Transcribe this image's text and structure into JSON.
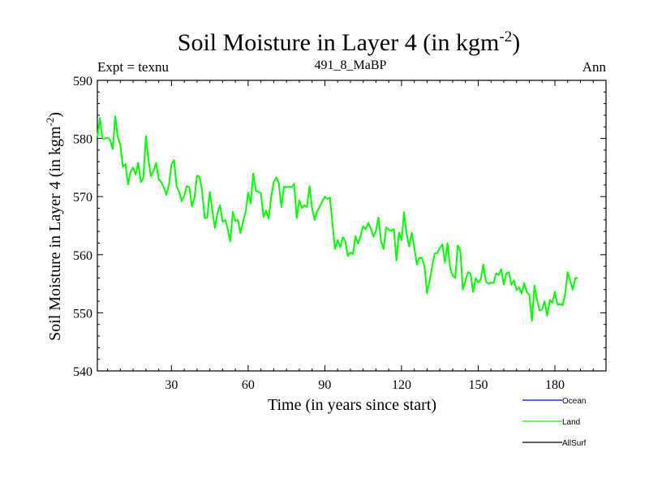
{
  "chart_data": {
    "type": "line",
    "title": "Soil Moisture in Layer 4 (in kgm",
    "title_sup": "-2",
    "title_close": ")",
    "subtitle_left": "Expt = texnu",
    "subtitle_center": "491_8_MaBP",
    "subtitle_right": "Ann",
    "xlabel": "Time (in years since start)",
    "ylabel": "Soil Moisture in Layer 4 (in kgm",
    "ylabel_sup": "-2",
    "ylabel_close": ")",
    "xlim": [
      1,
      200
    ],
    "ylim": [
      540,
      590
    ],
    "xticks": [
      30,
      60,
      90,
      120,
      150,
      180
    ],
    "yticks": [
      540,
      550,
      560,
      570,
      580,
      590
    ],
    "legend": [
      {
        "name": "Ocean",
        "color": "#0000ff"
      },
      {
        "name": "Land",
        "color": "#00ff00"
      },
      {
        "name": "AllSurf",
        "color": "#000000"
      }
    ],
    "series": [
      {
        "name": "Land",
        "color": "#00ff00",
        "x_start": 1,
        "x_step": 1,
        "values": [
          580.2,
          583.5,
          580.0,
          580.0,
          580.1,
          579.8,
          578.2,
          583.8,
          580.2,
          578.9,
          575.1,
          575.6,
          572.1,
          574.3,
          575.0,
          573.8,
          575.8,
          572.5,
          573.2,
          580.4,
          576.2,
          573.5,
          574.5,
          575.8,
          573.0,
          572.5,
          571.6,
          570.3,
          572.0,
          575.5,
          576.3,
          571.8,
          570.8,
          569.2,
          570.2,
          571.8,
          571.6,
          568.3,
          569.8,
          573.6,
          573.4,
          571.0,
          566.3,
          566.4,
          570.8,
          567.5,
          564.6,
          567.2,
          568.5,
          565.7,
          566.0,
          564.4,
          562.3,
          567.4,
          565.8,
          566.0,
          563.7,
          565.7,
          567.3,
          570.7,
          568.8,
          574.0,
          571.0,
          570.8,
          570.6,
          566.5,
          567.6,
          566.2,
          569.9,
          572.5,
          573.3,
          572.3,
          568.2,
          571.7,
          571.6,
          571.7,
          571.6,
          572.2,
          566.3,
          569.4,
          568.0,
          568.5,
          568.2,
          571.8,
          568.0,
          566.0,
          567.5,
          568.2,
          569.2,
          570.0,
          569.6,
          569.8,
          565.3,
          561.0,
          562.5,
          561.3,
          563.0,
          562.4,
          559.8,
          560.4,
          560.1,
          563.2,
          561.9,
          563.3,
          564.9,
          564.4,
          565.5,
          564.5,
          563.1,
          564.1,
          566.4,
          562.3,
          561.0,
          564.7,
          564.3,
          564.1,
          564.4,
          559.0,
          563.8,
          562.5,
          567.3,
          563.5,
          561.4,
          563.8,
          561.2,
          558.3,
          559.5,
          559.4,
          558.0,
          553.4,
          555.5,
          558.0,
          560.2,
          560.3,
          561.1,
          561.8,
          558.6,
          562.0,
          557.8,
          556.4,
          556.0,
          561.6,
          560.7,
          554.0,
          555.5,
          557.0,
          556.8,
          553.6,
          556.0,
          555.2,
          555.8,
          558.3,
          555.4,
          555.0,
          555.2,
          555.1,
          556.8,
          556.5,
          557.5,
          554.9,
          556.8,
          557.0,
          554.8,
          555.6,
          553.9,
          554.4,
          553.3,
          555.1,
          553.6,
          553.1,
          548.6,
          554.7,
          552.3,
          550.4,
          550.6,
          552.0,
          549.5,
          552.2,
          551.7,
          553.6,
          551.4,
          551.5,
          551.3,
          553.2,
          557.0,
          555.5,
          554.0,
          556.0,
          556.0
        ]
      }
    ]
  }
}
